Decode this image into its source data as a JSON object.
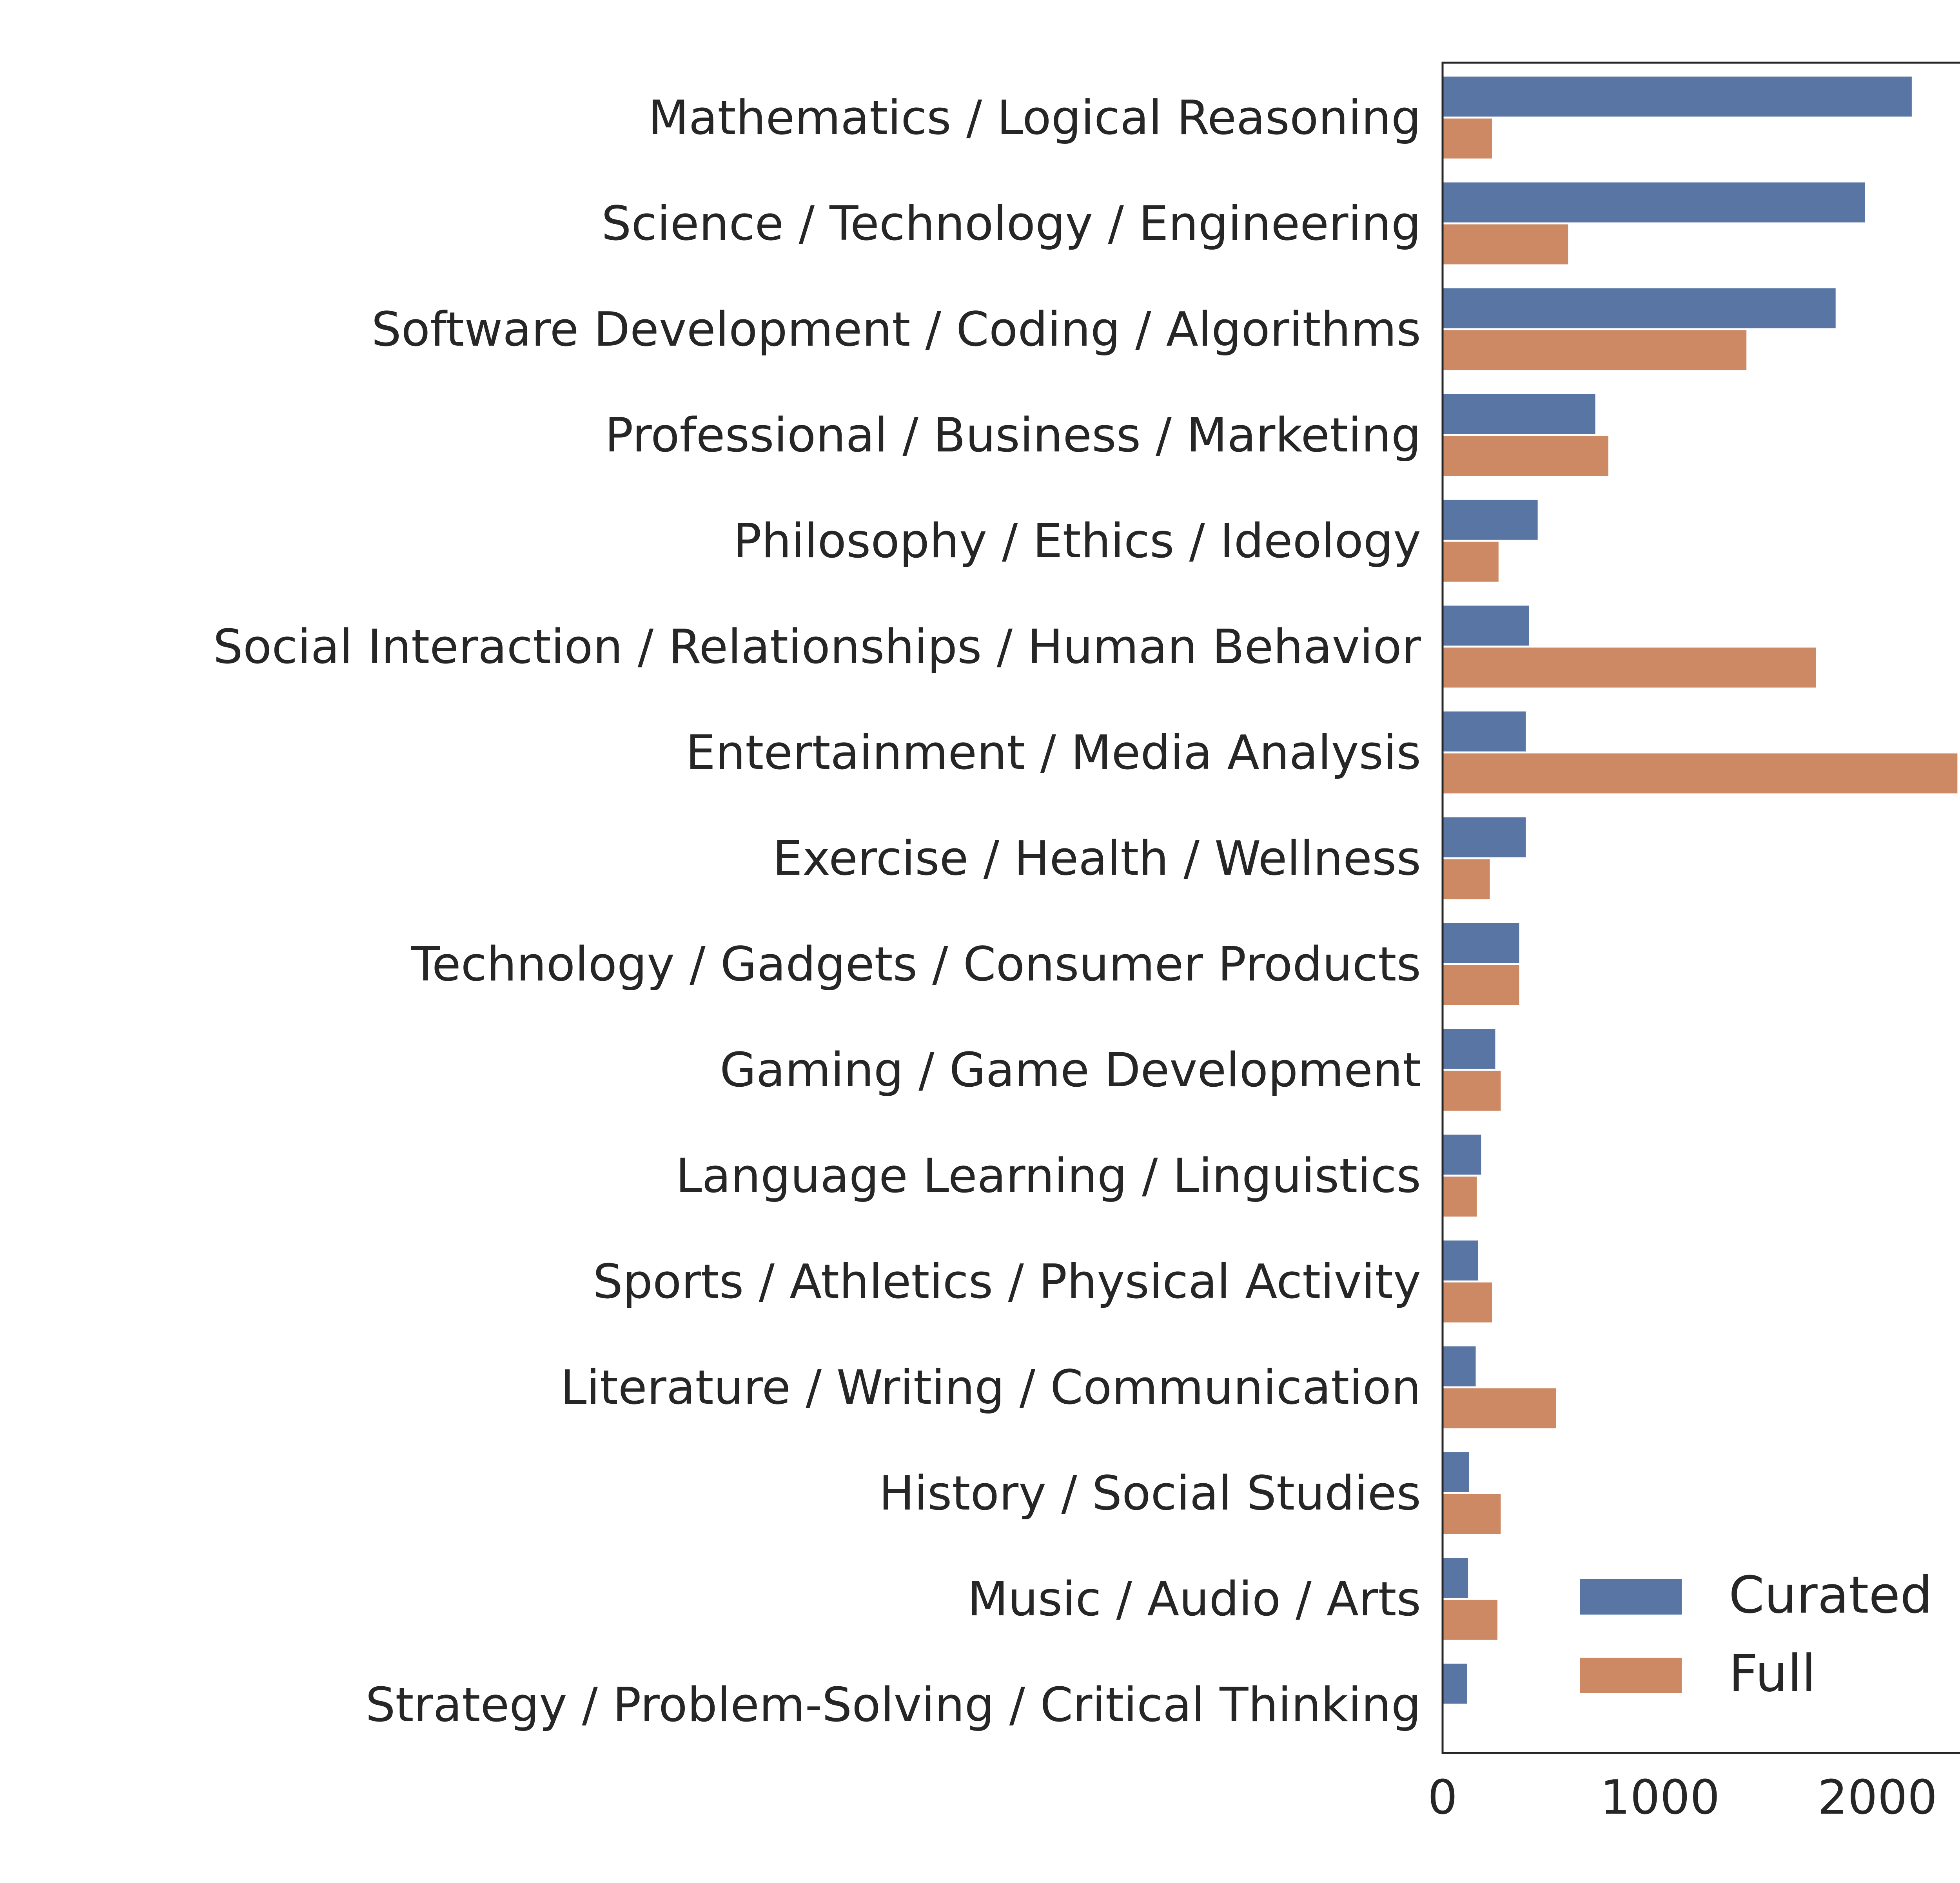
{
  "chart_data": {
    "type": "bar",
    "orientation": "horizontal",
    "categories": [
      "Mathematics / Logical Reasoning",
      "Science / Technology / Engineering",
      "Software Development / Coding / Algorithms",
      "Professional / Business / Marketing",
      "Philosophy / Ethics / Ideology",
      "Social Interaction / Relationships / Human Behavior",
      "Entertainment / Media Analysis",
      "Exercise / Health / Wellness",
      "Technology / Gadgets / Consumer Products",
      "Gaming / Game Development",
      "Language Learning / Linguistics",
      "Sports / Athletics / Physical Activity",
      "Literature / Writing / Communication",
      "History / Social Studies",
      "Music / Audio / Arts",
      "Strategy / Problem-Solving / Critical Thinking"
    ],
    "series": [
      {
        "name": "Curated",
        "color": "#5875a4",
        "values": [
          2160,
          1945,
          1810,
          705,
          440,
          400,
          385,
          385,
          355,
          245,
          180,
          165,
          155,
          125,
          120,
          115
        ]
      },
      {
        "name": "Full",
        "color": "#cc8963",
        "values": [
          230,
          580,
          1400,
          765,
          260,
          1720,
          2370,
          220,
          355,
          270,
          160,
          230,
          525,
          270,
          255,
          0
        ]
      }
    ],
    "xlim": [
      0,
      2500
    ],
    "xticks": [
      0,
      1000,
      2000
    ],
    "xtick_labels": [
      "0",
      "1000",
      "2000"
    ],
    "grid": false,
    "legend_position": "bottom-right"
  }
}
